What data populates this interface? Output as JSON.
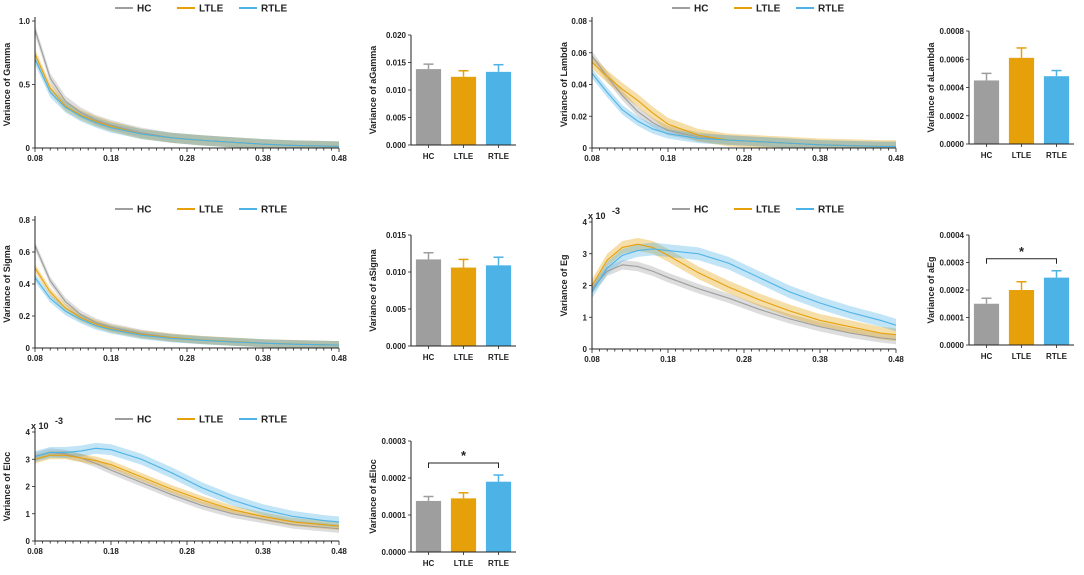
{
  "figure": {
    "legend_labels": [
      "HC",
      "LTLE",
      "RTLE"
    ],
    "colors": {
      "HC": "#9e9e9e",
      "LTLE": "#e6a00a",
      "RTLE": "#4db3e6"
    }
  },
  "chart_data": [
    {
      "type": "line",
      "ylabel": "Variance of Gamma",
      "xlim": [
        0.08,
        0.48
      ],
      "xticks": [
        "0.08",
        "0.18",
        "0.28",
        "0.38",
        "0.48"
      ],
      "ylim": [
        0,
        1.0
      ],
      "yticks": [
        "0",
        "0.5",
        "1.0"
      ],
      "x": [
        0.08,
        0.1,
        0.12,
        0.14,
        0.16,
        0.18,
        0.22,
        0.26,
        0.3,
        0.34,
        0.38,
        0.42,
        0.46,
        0.48
      ],
      "series": [
        {
          "name": "HC",
          "values": [
            0.93,
            0.55,
            0.37,
            0.28,
            0.22,
            0.18,
            0.12,
            0.08,
            0.06,
            0.045,
            0.03,
            0.02,
            0.015,
            0.012
          ],
          "band": 0.04
        },
        {
          "name": "LTLE",
          "values": [
            0.74,
            0.47,
            0.33,
            0.26,
            0.21,
            0.17,
            0.11,
            0.08,
            0.06,
            0.045,
            0.03,
            0.02,
            0.015,
            0.012
          ],
          "band": 0.04
        },
        {
          "name": "RTLE",
          "values": [
            0.7,
            0.44,
            0.32,
            0.25,
            0.2,
            0.16,
            0.11,
            0.08,
            0.06,
            0.045,
            0.03,
            0.02,
            0.015,
            0.012
          ],
          "band": 0.04
        }
      ]
    },
    {
      "type": "bar",
      "ylabel": "Variance of aGamma",
      "categories": [
        "HC",
        "LTLE",
        "RTLE"
      ],
      "values": [
        0.0138,
        0.0124,
        0.0133
      ],
      "errors": [
        0.0009,
        0.0011,
        0.0013
      ],
      "ylim": [
        0,
        0.02
      ],
      "yticks": [
        "0.000",
        "0.005",
        "0.010",
        "0.015",
        "0.020"
      ],
      "significance": null
    },
    {
      "type": "line",
      "ylabel": "Variance of Lambda",
      "xlim": [
        0.08,
        0.48
      ],
      "xticks": [
        "0.08",
        "0.18",
        "0.28",
        "0.38",
        "0.48"
      ],
      "ylim": [
        0,
        0.08
      ],
      "yticks": [
        "0",
        "0.02",
        "0.04",
        "0.06",
        "0.08"
      ],
      "x": [
        0.08,
        0.1,
        0.12,
        0.14,
        0.16,
        0.18,
        0.22,
        0.26,
        0.3,
        0.34,
        0.38,
        0.42,
        0.46,
        0.48
      ],
      "series": [
        {
          "name": "HC",
          "values": [
            0.058,
            0.045,
            0.033,
            0.023,
            0.016,
            0.011,
            0.007,
            0.005,
            0.004,
            0.003,
            0.002,
            0.0015,
            0.001,
            0.001
          ],
          "band": 0.003
        },
        {
          "name": "LTLE",
          "values": [
            0.054,
            0.045,
            0.037,
            0.03,
            0.022,
            0.015,
            0.008,
            0.005,
            0.004,
            0.003,
            0.002,
            0.0015,
            0.001,
            0.001
          ],
          "band": 0.004
        },
        {
          "name": "RTLE",
          "values": [
            0.047,
            0.035,
            0.024,
            0.017,
            0.012,
            0.009,
            0.006,
            0.005,
            0.004,
            0.003,
            0.002,
            0.0015,
            0.001,
            0.001
          ],
          "band": 0.003
        }
      ]
    },
    {
      "type": "bar",
      "ylabel": "Variance of aLambda",
      "categories": [
        "HC",
        "LTLE",
        "RTLE"
      ],
      "values": [
        0.00045,
        0.00061,
        0.00048
      ],
      "errors": [
        5e-05,
        7e-05,
        4e-05
      ],
      "ylim": [
        0,
        0.0008
      ],
      "yticks": [
        "0.0000",
        "0.0002",
        "0.0004",
        "0.0006",
        "0.0008"
      ],
      "significance": null
    },
    {
      "type": "line",
      "ylabel": "Variance of Sigma",
      "xlim": [
        0.08,
        0.48
      ],
      "xticks": [
        "0.08",
        "0.18",
        "0.28",
        "0.38",
        "0.48"
      ],
      "ylim": [
        0,
        0.8
      ],
      "yticks": [
        "0",
        "0.2",
        "0.4",
        "0.6",
        "0.8"
      ],
      "x": [
        0.08,
        0.1,
        0.12,
        0.14,
        0.16,
        0.18,
        0.22,
        0.26,
        0.3,
        0.34,
        0.38,
        0.42,
        0.46,
        0.48
      ],
      "series": [
        {
          "name": "HC",
          "values": [
            0.64,
            0.42,
            0.29,
            0.21,
            0.16,
            0.13,
            0.09,
            0.065,
            0.05,
            0.04,
            0.03,
            0.025,
            0.02,
            0.018
          ],
          "band": 0.025
        },
        {
          "name": "LTLE",
          "values": [
            0.5,
            0.35,
            0.25,
            0.19,
            0.15,
            0.12,
            0.085,
            0.065,
            0.05,
            0.04,
            0.03,
            0.025,
            0.02,
            0.018
          ],
          "band": 0.025
        },
        {
          "name": "RTLE",
          "values": [
            0.44,
            0.31,
            0.23,
            0.18,
            0.14,
            0.115,
            0.08,
            0.06,
            0.048,
            0.038,
            0.03,
            0.024,
            0.02,
            0.018
          ],
          "band": 0.025
        }
      ]
    },
    {
      "type": "bar",
      "ylabel": "Variance of aSigma",
      "categories": [
        "HC",
        "LTLE",
        "RTLE"
      ],
      "values": [
        0.0117,
        0.0106,
        0.0109
      ],
      "errors": [
        0.0009,
        0.0011,
        0.0011
      ],
      "ylim": [
        0,
        0.015
      ],
      "yticks": [
        "0.000",
        "0.005",
        "0.010",
        "0.015"
      ],
      "significance": null
    },
    {
      "type": "line",
      "ylabel": "Variance of Eg",
      "sci_label": "x 10",
      "sci_exp": "-3",
      "xlim": [
        0.08,
        0.48
      ],
      "xticks": [
        "0.08",
        "0.18",
        "0.28",
        "0.38",
        "0.48"
      ],
      "ylim": [
        0,
        4
      ],
      "yticks": [
        "0",
        "1",
        "2",
        "3",
        "4"
      ],
      "x": [
        0.08,
        0.1,
        0.12,
        0.14,
        0.16,
        0.18,
        0.22,
        0.26,
        0.3,
        0.34,
        0.38,
        0.42,
        0.46,
        0.48
      ],
      "series": [
        {
          "name": "HC",
          "values": [
            1.9,
            2.45,
            2.65,
            2.6,
            2.45,
            2.25,
            1.9,
            1.6,
            1.25,
            0.95,
            0.7,
            0.5,
            0.35,
            0.3
          ],
          "band": 0.15
        },
        {
          "name": "LTLE",
          "values": [
            2.0,
            2.8,
            3.2,
            3.3,
            3.2,
            2.95,
            2.4,
            1.95,
            1.55,
            1.2,
            0.9,
            0.7,
            0.5,
            0.45
          ],
          "band": 0.2
        },
        {
          "name": "RTLE",
          "values": [
            1.8,
            2.55,
            2.95,
            3.1,
            3.15,
            3.1,
            3.0,
            2.7,
            2.25,
            1.8,
            1.45,
            1.15,
            0.9,
            0.75
          ],
          "band": 0.2
        }
      ]
    },
    {
      "type": "bar",
      "ylabel": "Variance of aEg",
      "categories": [
        "HC",
        "LTLE",
        "RTLE"
      ],
      "values": [
        0.00015,
        0.0002,
        0.000245
      ],
      "errors": [
        2e-05,
        3e-05,
        2.5e-05
      ],
      "ylim": [
        0,
        0.0004
      ],
      "yticks": [
        "0.0000",
        "0.0001",
        "0.0002",
        "0.0003",
        "0.0004"
      ],
      "significance": {
        "from": 0,
        "to": 2,
        "label": "*"
      }
    },
    {
      "type": "line",
      "ylabel": "Variance of Eloc",
      "sci_label": "x 10",
      "sci_exp": "-3",
      "xlim": [
        0.08,
        0.48
      ],
      "xticks": [
        "0.08",
        "0.18",
        "0.28",
        "0.38",
        "0.48"
      ],
      "ylim": [
        0,
        4
      ],
      "yticks": [
        "0",
        "1",
        "2",
        "3",
        "4"
      ],
      "x": [
        0.08,
        0.1,
        0.12,
        0.14,
        0.16,
        0.18,
        0.22,
        0.26,
        0.3,
        0.34,
        0.38,
        0.42,
        0.46,
        0.48
      ],
      "series": [
        {
          "name": "HC",
          "values": [
            3.1,
            3.25,
            3.2,
            3.05,
            2.85,
            2.6,
            2.15,
            1.7,
            1.3,
            1.0,
            0.8,
            0.6,
            0.5,
            0.45
          ],
          "band": 0.15
        },
        {
          "name": "LTLE",
          "values": [
            3.0,
            3.15,
            3.15,
            3.05,
            2.95,
            2.8,
            2.35,
            1.9,
            1.5,
            1.15,
            0.9,
            0.7,
            0.6,
            0.55
          ],
          "band": 0.15
        },
        {
          "name": "RTLE",
          "values": [
            3.1,
            3.25,
            3.25,
            3.3,
            3.4,
            3.35,
            3.0,
            2.5,
            1.95,
            1.5,
            1.15,
            0.9,
            0.75,
            0.7
          ],
          "band": 0.2
        }
      ]
    },
    {
      "type": "bar",
      "ylabel": "Variance of aEloc",
      "categories": [
        "HC",
        "LTLE",
        "RTLE"
      ],
      "values": [
        0.000138,
        0.000145,
        0.00019
      ],
      "errors": [
        1.2e-05,
        1.5e-05,
        1.8e-05
      ],
      "ylim": [
        0,
        0.0003
      ],
      "yticks": [
        "0.0000",
        "0.0001",
        "0.0002",
        "0.0003"
      ],
      "significance": {
        "from": 0,
        "to": 2,
        "label": "*"
      }
    }
  ]
}
